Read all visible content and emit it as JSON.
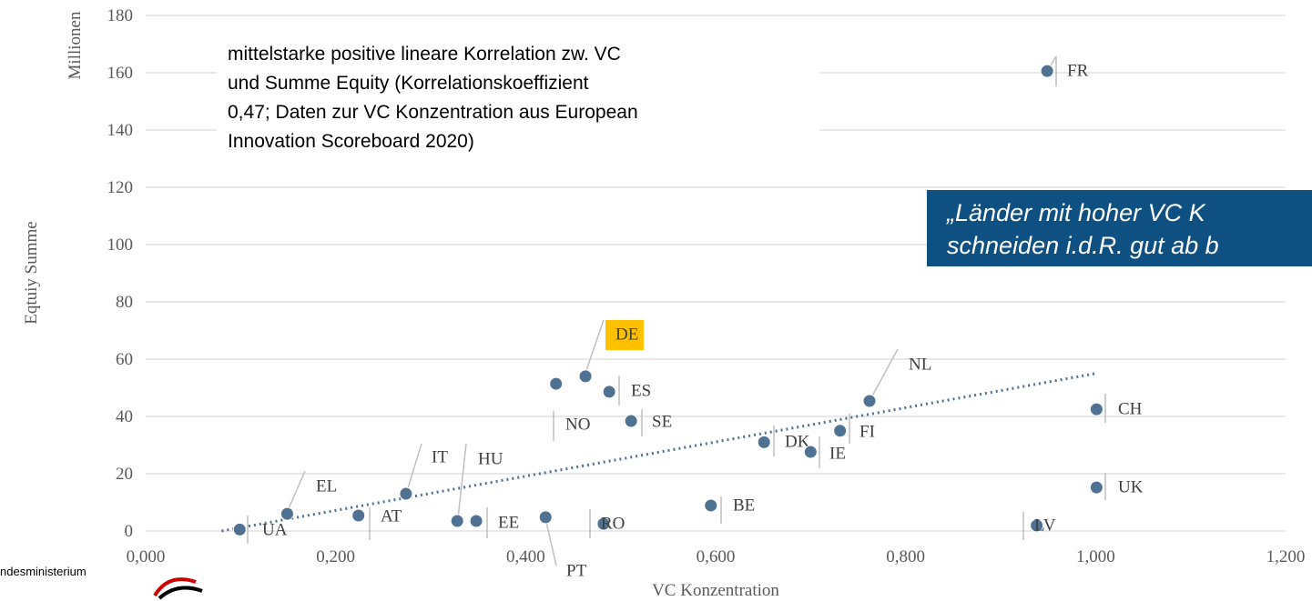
{
  "chart_data": {
    "type": "scatter",
    "x_label": "VC Konzentration",
    "y_label": "Eqtuiy Summe",
    "y_unit": "Millionen",
    "annotation": [
      "mittelstarke positive lineare Korrelation zw. VC",
      "und Summe Equity (Korrelationskoeffizient",
      "0,47; Daten zur VC Konzentration aus European",
      "Innovation Scoreboard 2020)"
    ],
    "callout": [
      "„Länder mit hoher VC K",
      "schneiden i.d.R. gut ab b"
    ],
    "footer": "ndesministerium",
    "labels": [
      "UA",
      "EL",
      "AT",
      "IT",
      "HU",
      "EE",
      "PT",
      "RO",
      "NO",
      "DE",
      "ES",
      "SE",
      "BE",
      "DK",
      "IE",
      "FI",
      "NL",
      "LV",
      "CH",
      "UK",
      "FR"
    ],
    "x": [
      0.099,
      0.149,
      0.224,
      0.274,
      0.328,
      0.348,
      0.421,
      0.482,
      0.432,
      0.463,
      0.488,
      0.511,
      0.595,
      0.651,
      0.7,
      0.731,
      0.762,
      0.938,
      1.001,
      1.001,
      0.949
    ],
    "values": [
      0.5,
      6,
      5.4,
      13,
      3.5,
      3.5,
      4.8,
      2.5,
      51.4,
      54,
      48.6,
      38.4,
      8.9,
      31,
      27.6,
      35,
      45.4,
      1.9,
      42.5,
      15.2,
      160.6
    ],
    "color": "#4f7192",
    "highlight": "DE",
    "highlight_color": "#ffc000",
    "trendline": {
      "x": [
        0.08,
        1.0
      ],
      "y": [
        0,
        55
      ],
      "color": "#4f7192"
    },
    "xlim": [
      0,
      1.2
    ],
    "xticks": [
      {
        "value": 0,
        "label": "0,000"
      },
      {
        "value": 0.2,
        "label": "0,200"
      },
      {
        "value": 0.4,
        "label": "0,400"
      },
      {
        "value": 0.6,
        "label": "0,600"
      },
      {
        "value": 0.8,
        "label": "0,800"
      },
      {
        "value": 1.0,
        "label": "1,000"
      },
      {
        "value": 1.2,
        "label": "1,200"
      }
    ],
    "ylim": [
      0,
      180
    ],
    "yticks": [
      0,
      20,
      40,
      60,
      80,
      100,
      120,
      140,
      160,
      180
    ],
    "grid": true
  }
}
